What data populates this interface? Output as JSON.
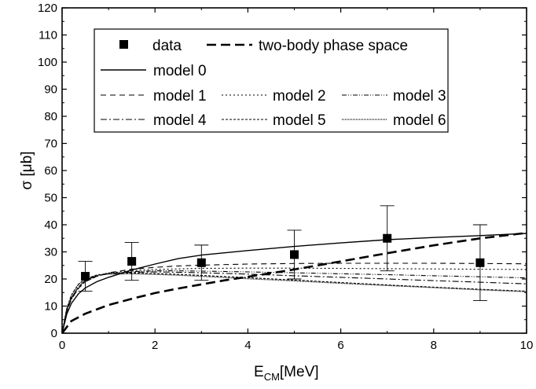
{
  "chart_data": {
    "type": "line",
    "xlabel": {
      "main": "E",
      "sub": "CM",
      "unit": "[MeV]"
    },
    "ylabel": "σ [μb]",
    "xlim": [
      0,
      10
    ],
    "ylim": [
      0,
      120
    ],
    "x_ticks": [
      "0",
      "2",
      "4",
      "6",
      "8",
      "10"
    ],
    "y_ticks": [
      "0",
      "10",
      "20",
      "30",
      "40",
      "50",
      "60",
      "70",
      "80",
      "90",
      "100",
      "110",
      "120"
    ],
    "grid": false,
    "legend_position": "top",
    "data_series": {
      "name": "data",
      "points": [
        {
          "x": 0.5,
          "y": 21,
          "err_lo": 15.5,
          "err_hi": 26.5
        },
        {
          "x": 1.5,
          "y": 26.5,
          "err_lo": 19.5,
          "err_hi": 33.5
        },
        {
          "x": 3,
          "y": 26,
          "err_lo": 19.5,
          "err_hi": 32.5
        },
        {
          "x": 5,
          "y": 29,
          "err_lo": 20,
          "err_hi": 38
        },
        {
          "x": 7,
          "y": 35,
          "err_lo": 23,
          "err_hi": 47
        },
        {
          "x": 9,
          "y": 26,
          "err_lo": 12,
          "err_hi": 40
        }
      ]
    },
    "series": [
      {
        "name": "two-body phase space",
        "x": [
          0,
          0.2,
          0.5,
          0.75,
          1,
          1.5,
          2,
          2.5,
          3,
          3.5,
          4,
          5,
          6,
          7,
          8,
          9,
          10
        ],
        "y": [
          0,
          4.5,
          7.2,
          8.8,
          10.4,
          12.7,
          14.8,
          16.5,
          18,
          19.5,
          20.8,
          23.5,
          26.5,
          29.5,
          32.4,
          35.0,
          37.0
        ],
        "dash": "12,6",
        "width": 2.6
      },
      {
        "name": "model 0",
        "x": [
          0,
          0.1,
          0.2,
          0.35,
          0.5,
          0.75,
          1,
          1.5,
          2,
          2.5,
          3,
          4,
          5,
          6,
          7,
          8,
          9,
          10
        ],
        "y": [
          0,
          7,
          11,
          14.5,
          16.7,
          19,
          20.6,
          23.3,
          25.5,
          27.5,
          28.8,
          30.5,
          32,
          33.3,
          34.5,
          35.3,
          36,
          36.8
        ],
        "dash": "",
        "width": 1.4
      },
      {
        "name": "model 1",
        "x": [
          0,
          0.1,
          0.2,
          0.35,
          0.5,
          0.75,
          1,
          1.5,
          2,
          2.5,
          3,
          4,
          5,
          6,
          7,
          8,
          9,
          10
        ],
        "y": [
          0,
          8,
          12.5,
          16.5,
          19,
          21,
          22.3,
          23.6,
          24.3,
          24.8,
          25.1,
          25.5,
          25.7,
          25.8,
          25.8,
          25.8,
          25.7,
          25.6
        ],
        "dash": "7,5",
        "width": 1.1
      },
      {
        "name": "model 2",
        "x": [
          0,
          0.1,
          0.2,
          0.35,
          0.5,
          0.75,
          1,
          1.5,
          2,
          2.5,
          3,
          4,
          5,
          6,
          7,
          8,
          9,
          10
        ],
        "y": [
          0,
          8,
          12.5,
          16.5,
          19,
          21,
          22.2,
          23.1,
          23.5,
          23.7,
          23.9,
          24,
          24,
          23.9,
          23.8,
          23.7,
          23.6,
          23.5
        ],
        "dash": "2,3",
        "width": 1.1
      },
      {
        "name": "model 3",
        "x": [
          0,
          0.1,
          0.2,
          0.35,
          0.5,
          0.75,
          1,
          1.5,
          2,
          2.5,
          3,
          4,
          5,
          6,
          7,
          8,
          9,
          10
        ],
        "y": [
          0,
          8.5,
          13,
          17,
          19.5,
          21.2,
          22,
          22.7,
          23,
          23,
          22.9,
          22.6,
          22.3,
          21.9,
          21.6,
          21.2,
          20.8,
          20.4
        ],
        "dash": "6,2,1,2,1,2",
        "width": 1.1
      },
      {
        "name": "model 4",
        "x": [
          0,
          0.1,
          0.2,
          0.35,
          0.5,
          0.75,
          1,
          1.5,
          2,
          2.5,
          3,
          4,
          5,
          6,
          7,
          8,
          9,
          10
        ],
        "y": [
          0,
          8.5,
          13,
          17,
          19.5,
          21.2,
          22,
          22.5,
          22.6,
          22.5,
          22.3,
          21.8,
          21.2,
          20.6,
          20,
          19.4,
          18.8,
          18.2
        ],
        "dash": "8,3,2,3",
        "width": 1.1
      },
      {
        "name": "model 5",
        "x": [
          0,
          0.1,
          0.2,
          0.35,
          0.5,
          0.75,
          1,
          1.5,
          2,
          2.5,
          3,
          4,
          5,
          6,
          7,
          8,
          9,
          10
        ],
        "y": [
          0,
          9,
          14,
          18,
          20,
          21.5,
          22,
          22.2,
          22,
          21.7,
          21.3,
          20.5,
          19.6,
          18.7,
          17.8,
          17,
          16.2,
          15.5
        ],
        "dash": "3,2",
        "width": 1.1
      },
      {
        "name": "model 6",
        "x": [
          0,
          0.1,
          0.2,
          0.35,
          0.5,
          0.75,
          1,
          1.5,
          2,
          2.5,
          3,
          4,
          5,
          6,
          7,
          8,
          9,
          10
        ],
        "y": [
          0,
          9,
          14,
          18,
          20,
          21.3,
          21.8,
          21.9,
          21.7,
          21.4,
          21,
          20.1,
          19.3,
          18.4,
          17.6,
          16.8,
          16,
          15.3
        ],
        "dash": "1,1",
        "width": 1.3
      }
    ],
    "legend": [
      {
        "label": "data"
      },
      {
        "label": "two-body phase space"
      },
      {
        "label": "model 0"
      },
      {
        "label": "model 1"
      },
      {
        "label": "model 2"
      },
      {
        "label": "model 3"
      },
      {
        "label": "model 4"
      },
      {
        "label": "model 5"
      },
      {
        "label": "model 6"
      }
    ]
  }
}
